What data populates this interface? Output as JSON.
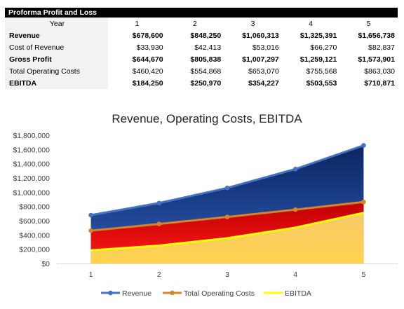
{
  "table": {
    "title": "Proforma Profit and Loss",
    "year_header": "Year",
    "years": [
      "1",
      "2",
      "3",
      "4",
      "5"
    ],
    "rows": [
      {
        "label": "Revenue",
        "bold": true,
        "values": [
          "$678,600",
          "$848,250",
          "$1,060,313",
          "$1,325,391",
          "$1,656,738"
        ]
      },
      {
        "label": "Cost of Revenue",
        "bold": false,
        "values": [
          "$33,930",
          "$42,413",
          "$53,016",
          "$66,270",
          "$82,837"
        ]
      },
      {
        "label": "Gross Profit",
        "bold": true,
        "values": [
          "$644,670",
          "$805,838",
          "$1,007,297",
          "$1,259,121",
          "$1,573,901"
        ]
      },
      {
        "label": "Total Operating Costs",
        "bold": false,
        "values": [
          "$460,420",
          "$554,868",
          "$653,070",
          "$755,568",
          "$863,030"
        ]
      },
      {
        "label": "EBITDA",
        "bold": true,
        "values": [
          "$184,250",
          "$250,970",
          "$354,227",
          "$503,553",
          "$710,871"
        ]
      }
    ]
  },
  "chart_data": {
    "type": "area",
    "title": "Revenue, Operating Costs, EBITDA",
    "categories": [
      "1",
      "2",
      "3",
      "4",
      "5"
    ],
    "ylim": [
      0,
      1800000
    ],
    "yticks": [
      0,
      200000,
      400000,
      600000,
      800000,
      1000000,
      1200000,
      1400000,
      1600000,
      1800000
    ],
    "ytick_labels": [
      "$0",
      "$200,000",
      "$400,000",
      "$600,000",
      "$800,000",
      "$1,000,000",
      "$1,200,000",
      "$1,400,000",
      "$1,600,000",
      "$1,800,000"
    ],
    "grid": false,
    "legend_position": "bottom",
    "series": [
      {
        "name": "Revenue",
        "values": [
          678600,
          848250,
          1060313,
          1325391,
          1656738
        ],
        "line_color": "#4472c4",
        "fill_top": "#2e5bb5",
        "fill_bottom": "#0b2560"
      },
      {
        "name": "Total Operating Costs",
        "values": [
          460420,
          554868,
          653070,
          755568,
          863030
        ],
        "line_color": "#d4862a",
        "fill_top": "#ff1a1a",
        "fill_bottom": "#c00000"
      },
      {
        "name": "EBITDA",
        "values": [
          184250,
          250970,
          354227,
          503553,
          710871
        ],
        "line_color": "#ffff00",
        "fill_top": "#ffd34d",
        "fill_bottom": "#f5c969"
      }
    ]
  }
}
